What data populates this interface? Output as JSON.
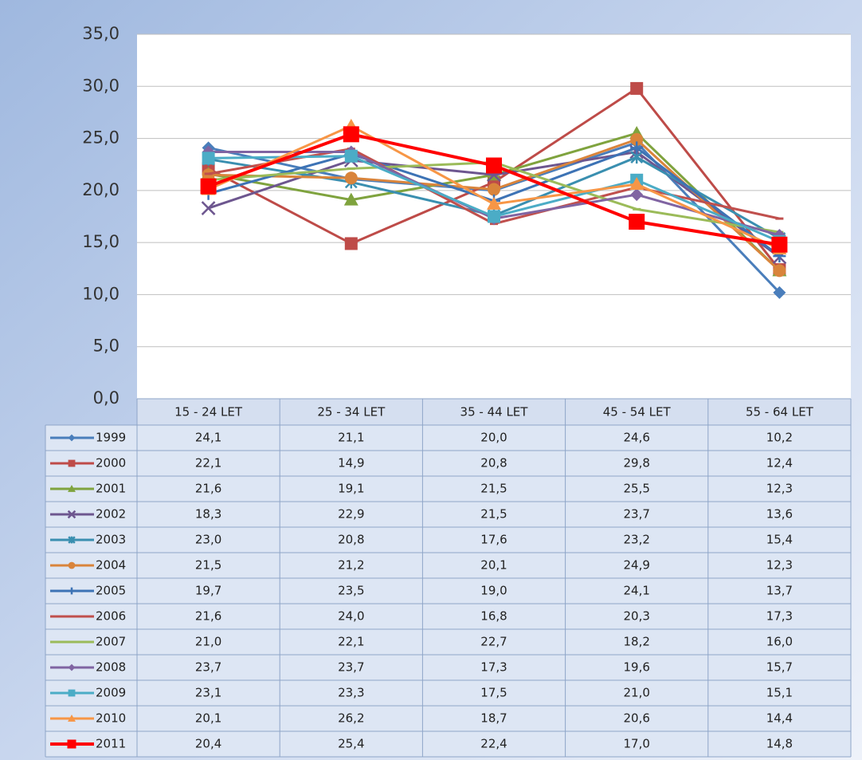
{
  "chart_data": {
    "type": "line",
    "categories": [
      "15 - 24 LET",
      "25 - 34 LET",
      "35 - 44 LET",
      "45 - 54 LET",
      "55 - 64 LET"
    ],
    "ylim": [
      0,
      35
    ],
    "yticks": [
      {
        "value": 0,
        "label": "0,0"
      },
      {
        "value": 5,
        "label": "5,0"
      },
      {
        "value": 10,
        "label": "10,0"
      },
      {
        "value": 15,
        "label": "15,0"
      },
      {
        "value": 20,
        "label": "20,0"
      },
      {
        "value": 25,
        "label": "25,0"
      },
      {
        "value": 30,
        "label": "30,0"
      },
      {
        "value": 35,
        "label": "35,0"
      }
    ],
    "grid": true,
    "series": [
      {
        "name": "1999",
        "color": "#4a7ebb",
        "marker": "diamond",
        "values": [
          24.1,
          21.1,
          20.0,
          24.6,
          10.2
        ],
        "value_labels": [
          "24,1",
          "21,1",
          "20,0",
          "24,6",
          "10,2"
        ]
      },
      {
        "name": "2000",
        "color": "#be4b48",
        "marker": "square",
        "values": [
          22.1,
          14.9,
          20.8,
          29.8,
          12.4
        ],
        "value_labels": [
          "22,1",
          "14,9",
          "20,8",
          "29,8",
          "12,4"
        ]
      },
      {
        "name": "2001",
        "color": "#7fa33e",
        "marker": "triangle",
        "values": [
          21.6,
          19.1,
          21.5,
          25.5,
          12.3
        ],
        "value_labels": [
          "21,6",
          "19,1",
          "21,5",
          "25,5",
          "12,3"
        ]
      },
      {
        "name": "2002",
        "color": "#6d568f",
        "marker": "x",
        "values": [
          18.3,
          22.9,
          21.5,
          23.7,
          13.6
        ],
        "value_labels": [
          "18,3",
          "22,9",
          "21,5",
          "23,7",
          "13,6"
        ]
      },
      {
        "name": "2003",
        "color": "#3a8fb0",
        "marker": "star",
        "values": [
          23.0,
          20.8,
          17.6,
          23.2,
          15.4
        ],
        "value_labels": [
          "23,0",
          "20,8",
          "17,6",
          "23,2",
          "15,4"
        ]
      },
      {
        "name": "2004",
        "color": "#d9843b",
        "marker": "circle",
        "values": [
          21.5,
          21.2,
          20.1,
          24.9,
          12.3
        ],
        "value_labels": [
          "21,5",
          "21,2",
          "20,1",
          "24,9",
          "12,3"
        ]
      },
      {
        "name": "2005",
        "color": "#3d73b5",
        "marker": "plus",
        "values": [
          19.7,
          23.5,
          19.0,
          24.1,
          13.7
        ],
        "value_labels": [
          "19,7",
          "23,5",
          "19,0",
          "24,1",
          "13,7"
        ]
      },
      {
        "name": "2006",
        "color": "#c0504d",
        "marker": "dash",
        "values": [
          21.6,
          24.0,
          16.8,
          20.3,
          17.3
        ],
        "value_labels": [
          "21,6",
          "24,0",
          "16,8",
          "20,3",
          "17,3"
        ]
      },
      {
        "name": "2007",
        "color": "#9bbb59",
        "marker": "dash",
        "values": [
          21.0,
          22.1,
          22.7,
          18.2,
          16.0
        ],
        "value_labels": [
          "21,0",
          "22,1",
          "22,7",
          "18,2",
          "16,0"
        ]
      },
      {
        "name": "2008",
        "color": "#8064a2",
        "marker": "diamond",
        "values": [
          23.7,
          23.7,
          17.3,
          19.6,
          15.7
        ],
        "value_labels": [
          "23,7",
          "23,7",
          "17,3",
          "19,6",
          "15,7"
        ]
      },
      {
        "name": "2009",
        "color": "#4bacc6",
        "marker": "square",
        "values": [
          23.1,
          23.3,
          17.5,
          21.0,
          15.1
        ],
        "value_labels": [
          "23,1",
          "23,3",
          "17,5",
          "21,0",
          "15,1"
        ]
      },
      {
        "name": "2010",
        "color": "#f79646",
        "marker": "triangle",
        "values": [
          20.1,
          26.2,
          18.7,
          20.6,
          14.4
        ],
        "value_labels": [
          "20,1",
          "26,2",
          "18,7",
          "20,6",
          "14,4"
        ]
      },
      {
        "name": "2011",
        "color": "#ff0000",
        "marker": "bigsquare",
        "values": [
          20.4,
          25.4,
          22.4,
          17.0,
          14.8
        ],
        "value_labels": [
          "20,4",
          "25,4",
          "22,4",
          "17,0",
          "14,8"
        ]
      }
    ]
  }
}
